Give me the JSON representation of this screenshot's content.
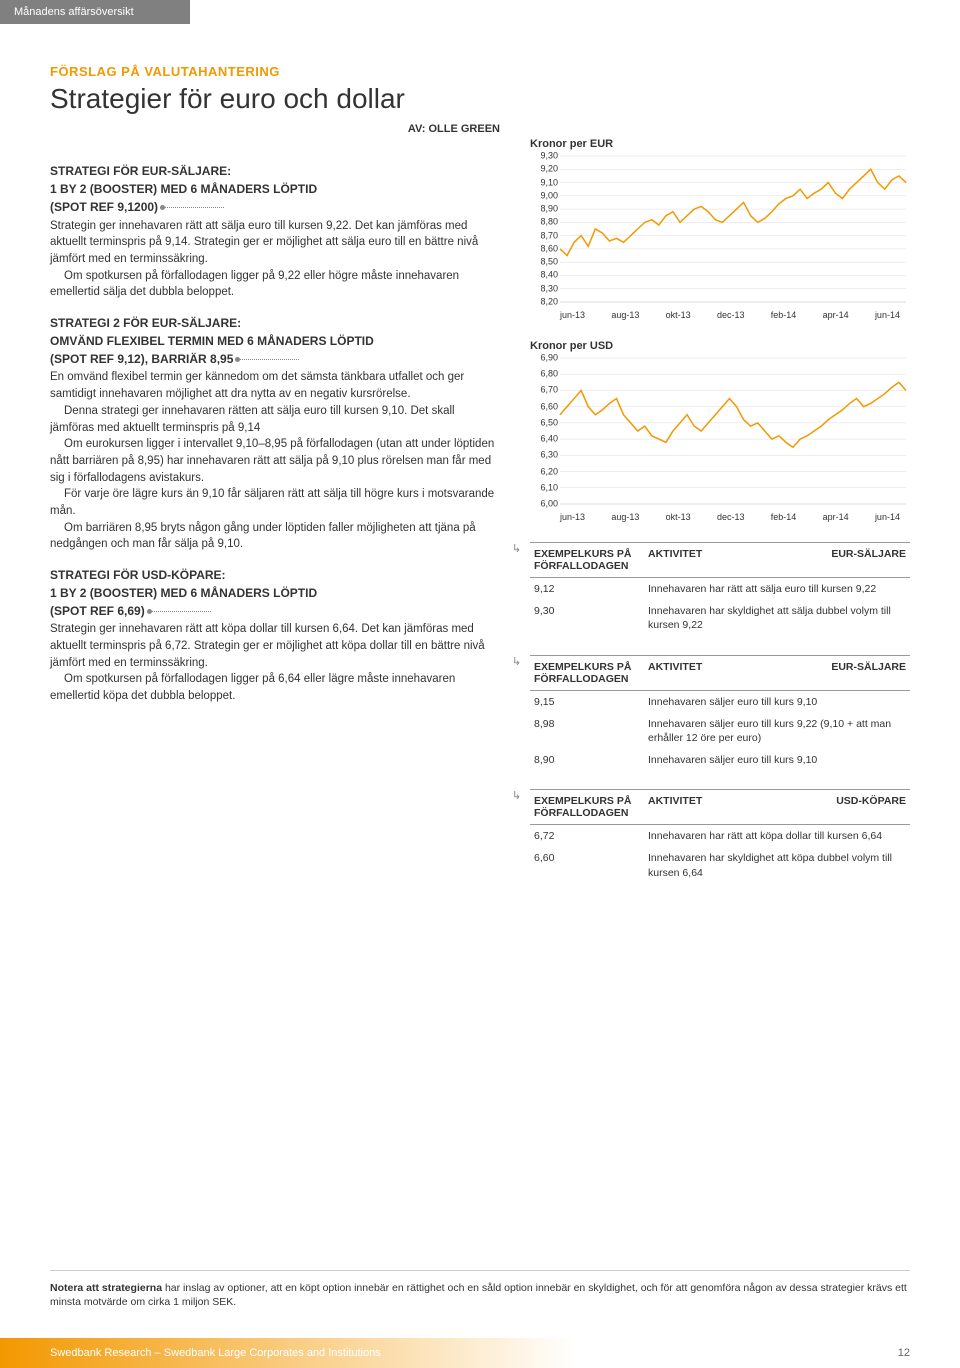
{
  "header": {
    "breadcrumb": "Månadens affärsöversikt"
  },
  "kicker": "FÖRSLAG PÅ VALUTAHANTERING",
  "title": "Strategier för euro och dollar",
  "byline": "AV: OLLE GREEN",
  "strategy1": {
    "h1": "STRATEGI FÖR EUR-SÄLJARE:",
    "h2": "1 BY 2 (BOOSTER) MED 6 MÅNADERS LÖPTID",
    "h3": "(SPOT REF 9,1200)",
    "p1": "Strategin ger innehavaren rätt att sälja euro till kursen 9,22. Det kan jämföras med aktuellt terminspris på 9,14. Strategin ger er möjlighet att sälja euro till en bättre nivå jämfört med en terminssäkring.",
    "p2": "Om spotkursen på förfallodagen ligger på 9,22 eller högre måste innehavaren emellertid sälja det dubbla beloppet."
  },
  "strategy2": {
    "h1": "STRATEGI 2 FÖR EUR-SÄLJARE:",
    "h2": "OMVÄND FLEXIBEL TERMIN MED 6 MÅNADERS LÖPTID",
    "h3": "(SPOT REF 9,12), BARRIÄR 8,95",
    "p1": "En omvänd flexibel termin ger kännedom om det sämsta tänkbara utfallet och ger samtidigt innehavaren möjlighet att dra nytta av en negativ kursrörelse.",
    "p2": "Denna strategi ger innehavaren rätten att sälja euro till kursen 9,10. Det skall jämföras med aktuellt terminspris på 9,14",
    "p3": "Om eurokursen ligger i intervallet 9,10–8,95 på förfallodagen (utan att under löptiden nått barriären på 8,95) har innehavaren rätt att sälja på 9,10 plus rörelsen man får med sig i förfallodagens avistakurs.",
    "p4": "För varje öre lägre kurs än 9,10 får säljaren rätt att sälja till högre kurs i motsvarande mån.",
    "p5": "Om barriären 8,95 bryts någon gång under löptiden faller möjligheten att tjäna på nedgången och man får sälja på 9,10."
  },
  "strategy3": {
    "h1": "STRATEGI FÖR USD-KÖPARE:",
    "h2": "1 BY 2 (BOOSTER) MED 6 MÅNADERS LÖPTID",
    "h3": "(SPOT REF 6,69)",
    "p1": "Strategin ger innehavaren rätt att köpa dollar till kursen 6,64. Det kan jämföras med aktuellt terminspris på 6,72. Strategin ger er möjlighet att köpa dollar till en bättre nivå jämfört med en terminssäkring.",
    "p2": "Om spotkursen på förfallodagen ligger på 6,64 eller lägre måste innehavaren emellertid köpa det dubbla beloppet."
  },
  "chart_eur": {
    "title": "Kronor per EUR",
    "ylabels": [
      "9,30",
      "9,20",
      "9,10",
      "9,00",
      "8,90",
      "8,80",
      "8,70",
      "8,60",
      "8,50",
      "8,40",
      "8,30",
      "8,20"
    ],
    "ymin": 8.2,
    "ymax": 9.3,
    "xlabels": [
      "jun-13",
      "aug-13",
      "okt-13",
      "dec-13",
      "feb-14",
      "apr-14",
      "jun-14"
    ],
    "line_color": "#f39800",
    "grid_color": "#dcdcdc",
    "values": [
      8.6,
      8.55,
      8.65,
      8.7,
      8.62,
      8.75,
      8.72,
      8.66,
      8.68,
      8.65,
      8.7,
      8.75,
      8.8,
      8.82,
      8.78,
      8.85,
      8.88,
      8.8,
      8.85,
      8.9,
      8.92,
      8.88,
      8.82,
      8.8,
      8.85,
      8.9,
      8.95,
      8.85,
      8.8,
      8.83,
      8.88,
      8.94,
      8.98,
      9.0,
      9.05,
      8.98,
      9.02,
      9.05,
      9.1,
      9.02,
      8.98,
      9.05,
      9.1,
      9.15,
      9.2,
      9.1,
      9.05,
      9.12,
      9.15,
      9.1
    ]
  },
  "chart_usd": {
    "title": "Kronor per USD",
    "ylabels": [
      "6,90",
      "6,80",
      "6,70",
      "6,60",
      "6,50",
      "6,40",
      "6,30",
      "6,20",
      "6,10",
      "6,00"
    ],
    "ymin": 6.0,
    "ymax": 6.9,
    "xlabels": [
      "jun-13",
      "aug-13",
      "okt-13",
      "dec-13",
      "feb-14",
      "apr-14",
      "jun-14"
    ],
    "line_color": "#f39800",
    "grid_color": "#dcdcdc",
    "values": [
      6.55,
      6.6,
      6.65,
      6.7,
      6.6,
      6.55,
      6.58,
      6.62,
      6.65,
      6.55,
      6.5,
      6.45,
      6.48,
      6.42,
      6.4,
      6.38,
      6.45,
      6.5,
      6.55,
      6.48,
      6.45,
      6.5,
      6.55,
      6.6,
      6.65,
      6.6,
      6.52,
      6.48,
      6.5,
      6.45,
      6.4,
      6.42,
      6.38,
      6.35,
      6.4,
      6.42,
      6.45,
      6.48,
      6.52,
      6.55,
      6.58,
      6.62,
      6.65,
      6.6,
      6.62,
      6.65,
      6.68,
      6.72,
      6.75,
      6.7
    ]
  },
  "table1": {
    "h1": "EXEMPELKURS PÅ FÖRFALLODAGEN",
    "h2": "AKTIVITET",
    "h3": "EUR-SÄLJARE",
    "rows": [
      {
        "k": "9,12",
        "v": "Innehavaren har rätt att sälja euro till kursen 9,22"
      },
      {
        "k": "9,30",
        "v": "Innehavaren har skyldighet att sälja dubbel volym till kursen 9,22"
      }
    ]
  },
  "table2": {
    "h1": "EXEMPELKURS PÅ FÖRFALLODAGEN",
    "h2": "AKTIVITET",
    "h3": "EUR-SÄLJARE",
    "rows": [
      {
        "k": "9,15",
        "v": "Innehavaren säljer euro till kurs 9,10"
      },
      {
        "k": "8,98",
        "v": "Innehavaren säljer euro till kurs 9,22 (9,10 + att man erhåller 12 öre per euro)"
      },
      {
        "k": "8,90",
        "v": "Innehavaren säljer euro till kurs 9,10"
      }
    ]
  },
  "table3": {
    "h1": "EXEMPELKURS PÅ FÖRFALLODAGEN",
    "h2": "AKTIVITET",
    "h3": "USD-KÖPARE",
    "rows": [
      {
        "k": "6,72",
        "v": "Innehavaren har rätt att köpa dollar till kursen 6,64"
      },
      {
        "k": "6,60",
        "v": "Innehavaren har skyldighet att köpa dubbel volym till kursen 6,64"
      }
    ]
  },
  "footnote": {
    "bold": "Notera att strategierna",
    "text": " har inslag av optioner, att en köpt option innebär en rättighet och en såld option innebär en skyldighet, och för att genomföra någon av dessa strategier krävs ett minsta motvärde om cirka 1 miljon SEK."
  },
  "footer": {
    "text": "Swedbank Research – Swedbank Large Corporates and Institutions",
    "page": "12"
  }
}
